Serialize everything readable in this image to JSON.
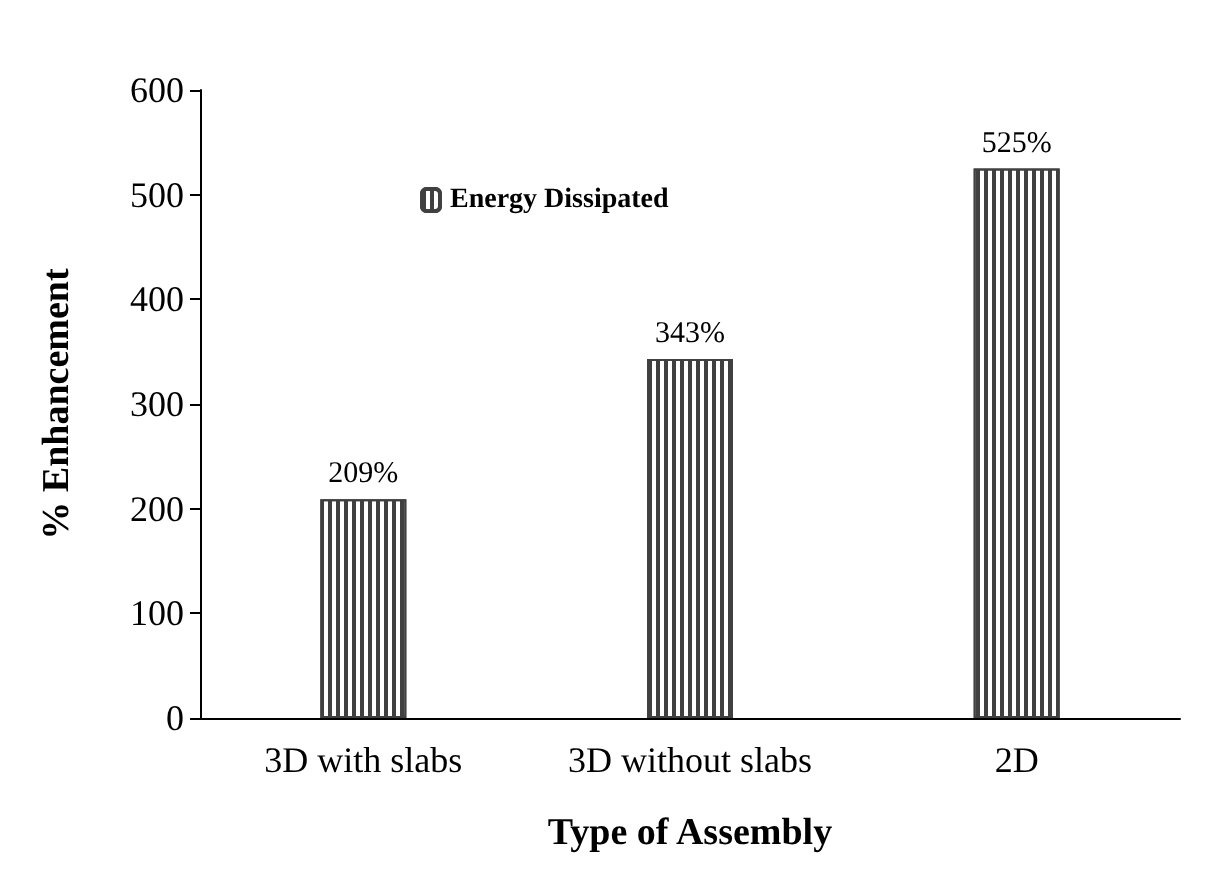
{
  "chart_data": {
    "type": "bar",
    "xlabel": "Type of Assembly",
    "ylabel": "% Enhancement",
    "categories": [
      "3D with slabs",
      "3D without slabs",
      "2D"
    ],
    "series": [
      {
        "name": "Energy Dissipated",
        "color": "#404040",
        "values": [
          209,
          343,
          525
        ],
        "value_labels": [
          "209%",
          "343%",
          "525%"
        ]
      }
    ],
    "ylim": [
      0,
      600
    ],
    "yticks": [
      0,
      100,
      200,
      300,
      400,
      500,
      600
    ],
    "grid": false,
    "legend": "top left"
  }
}
